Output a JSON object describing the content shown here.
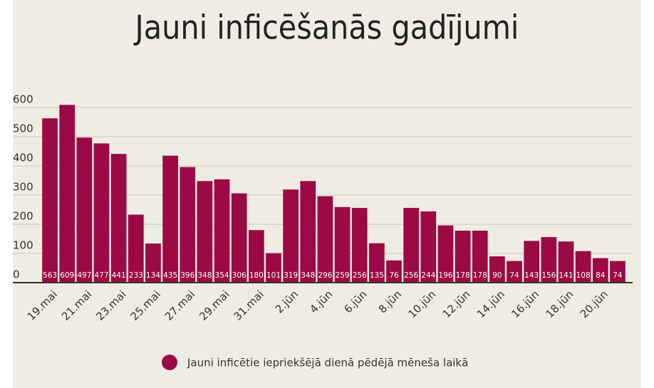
{
  "chart_data": {
    "type": "bar",
    "title": "Jauni inficēšanās gadījumi",
    "categories": [
      "19.mai",
      null,
      "21.mai",
      null,
      "23.mai",
      null,
      "25.mai",
      null,
      "27.mai",
      null,
      "29.mai",
      null,
      "31.mai",
      null,
      "2.jūn",
      null,
      "4.jūn",
      null,
      "6.jūn",
      null,
      "8.jūn",
      null,
      "10.jūn",
      null,
      "12.jūn",
      null,
      "14.jūn",
      null,
      "16.jūn",
      null,
      "18.jūn",
      null,
      "20.jūn",
      null
    ],
    "series": [
      {
        "name": "Jauni inficētie iepriekšējā dienā pēdējā mēneša laikā",
        "color": "#9b0a45",
        "values": [
          563,
          609,
          497,
          477,
          441,
          233,
          134,
          435,
          396,
          348,
          354,
          306,
          180,
          101,
          319,
          348,
          296,
          259,
          256,
          135,
          76,
          256,
          244,
          196,
          178,
          178,
          90,
          74,
          143,
          156,
          141,
          108,
          84,
          74
        ]
      }
    ],
    "ylim": [
      0,
      600
    ],
    "yticks": [
      0,
      100,
      200,
      300,
      400,
      500,
      600
    ],
    "grid": true,
    "legend": "bottom"
  }
}
